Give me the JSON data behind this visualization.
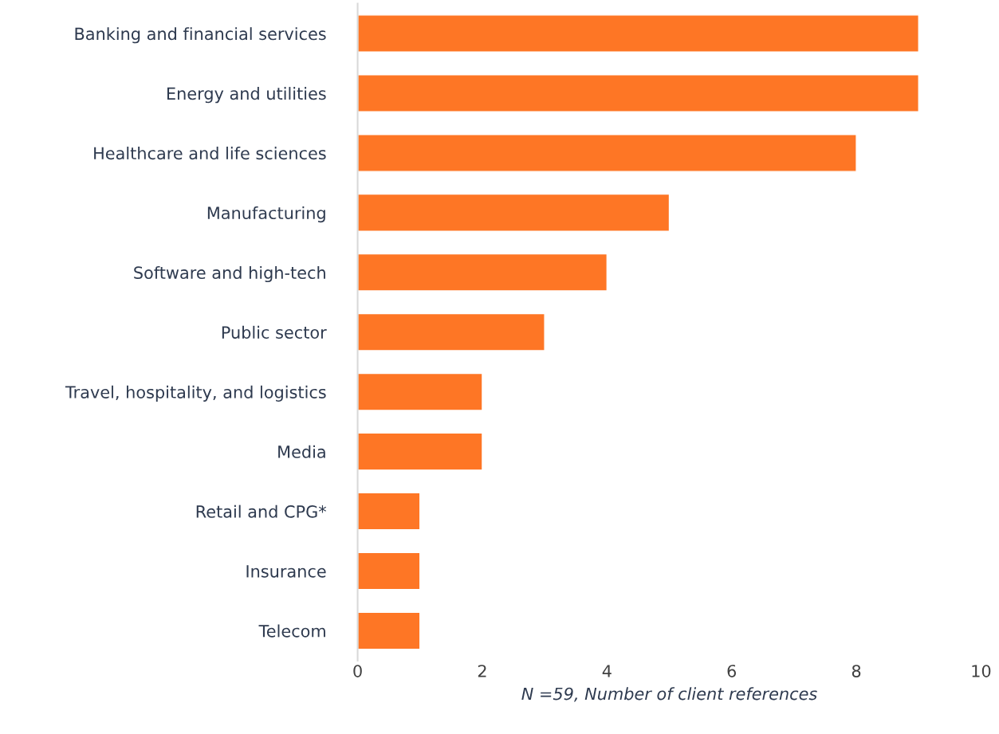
{
  "chart_data": {
    "type": "bar",
    "orientation": "horizontal",
    "xlabel": "N =59, Number of client references",
    "categories": [
      "Banking and financial services",
      "Energy and utilities",
      "Healthcare and life sciences",
      "Manufacturing",
      "Software and high-tech",
      "Public sector",
      "Travel, hospitality, and logistics",
      "Media",
      "Retail and CPG*",
      "Insurance",
      "Telecom"
    ],
    "values": [
      9,
      9,
      8,
      5,
      4,
      3,
      2,
      2,
      1,
      1,
      1
    ],
    "color": "#fe7625",
    "xlim": [
      0,
      10
    ],
    "xticks": [
      0,
      2,
      4,
      6,
      8,
      10
    ],
    "grid": false,
    "legend": false
  }
}
